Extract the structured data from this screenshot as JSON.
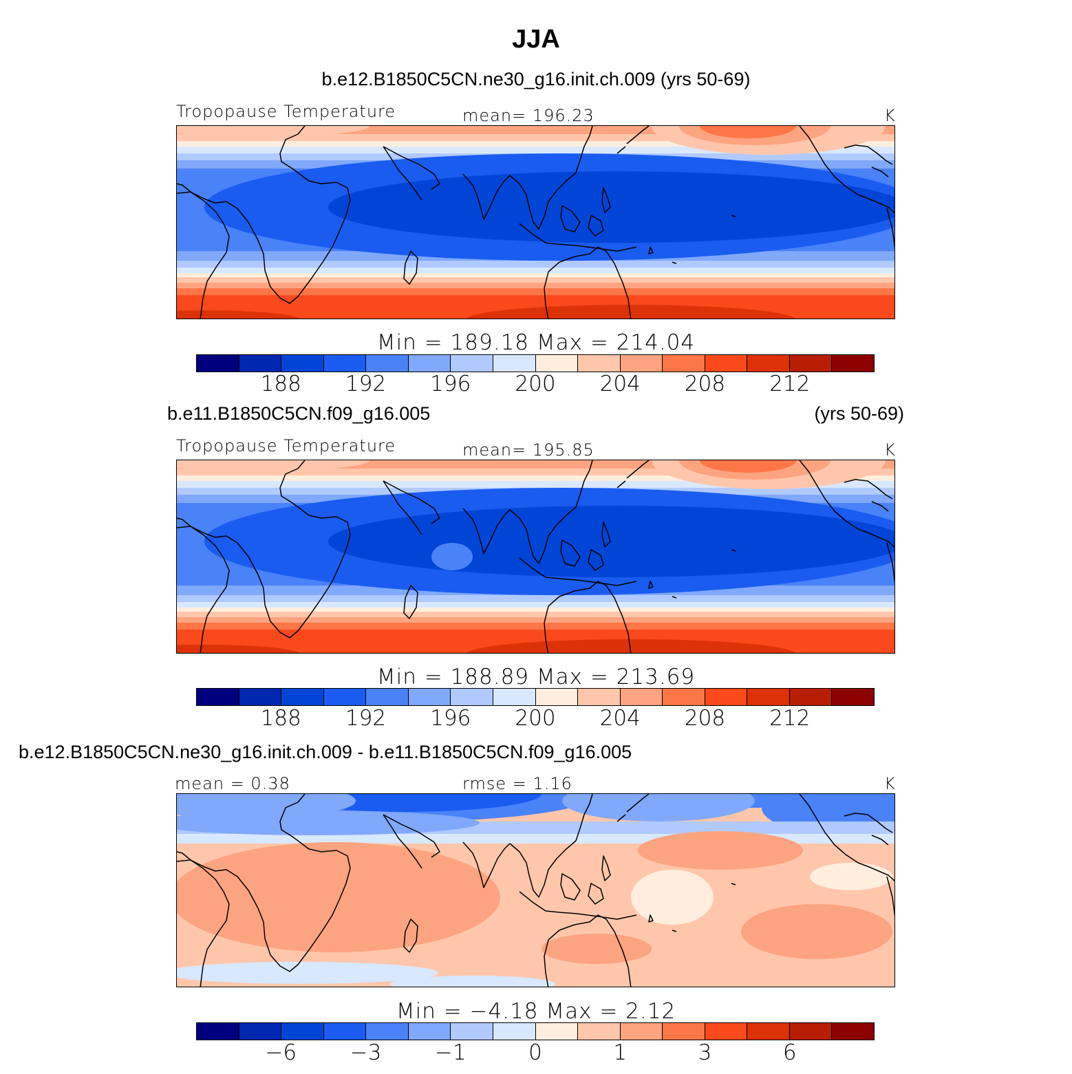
{
  "page_title": "JJA",
  "colorbar_colors": [
    "#00007f",
    "#0027b0",
    "#0045d6",
    "#1a5cf0",
    "#4a82f8",
    "#80a8fb",
    "#b0caff",
    "#d8e8ff",
    "#ffeede",
    "#ffc6ab",
    "#fca37f",
    "#fc7647",
    "#fa4a1c",
    "#dd3106",
    "#b71e04",
    "#8c0000"
  ],
  "panels": [
    {
      "case_left": "b.e12.B1850C5CN.ne30_g16.init.ch.009 (yrs 50-69)",
      "case_right": "",
      "var_label": "Tropopause Temperature",
      "stat_label": "mean=  196.23",
      "unit_label": "K",
      "min_max": "Min  =  189.18  Max  =  214.04",
      "ticks": [
        "188",
        "192",
        "196",
        "200",
        "204",
        "208",
        "212"
      ],
      "field": "model"
    },
    {
      "case_left": "b.e11.B1850C5CN.f09_g16.005",
      "case_right": "(yrs 50-69)",
      "var_label": "Tropopause Temperature",
      "stat_label": "mean=  195.85",
      "unit_label": "K",
      "min_max": "Min  =  188.89  Max  =  213.69",
      "ticks": [
        "188",
        "192",
        "196",
        "200",
        "204",
        "208",
        "212"
      ],
      "field": "model"
    },
    {
      "case_left": "b.e12.B1850C5CN.ne30_g16.init.ch.009 - b.e11.B1850C5CN.f09_g16.005",
      "case_right": "",
      "var_label": "mean  =     0.38",
      "stat_label": "rmse  =     1.16",
      "unit_label": "K",
      "min_max": "Min  =   −4.18  Max  =     2.12",
      "ticks": [
        "−6",
        "−3",
        "−1",
        "0",
        "1",
        "3",
        "6"
      ],
      "field": "diff"
    }
  ]
}
